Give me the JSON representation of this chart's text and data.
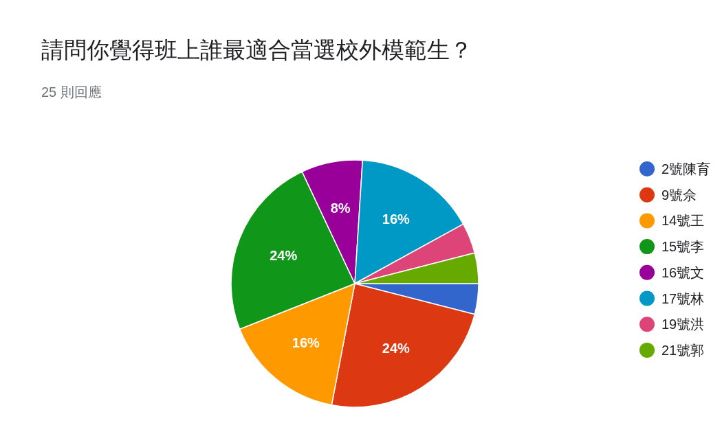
{
  "chart_data": {
    "type": "pie",
    "title": "請問你覺得班上誰最適合當選校外模範生？",
    "subtitle": "25 則回應",
    "categories": [
      "2號陳育",
      "9號佘",
      "14號王",
      "15號李",
      "16號文",
      "17號林",
      "19號洪",
      "21號郭"
    ],
    "values": [
      4,
      24,
      16,
      24,
      8,
      16,
      4,
      4
    ],
    "colors": [
      "#3366cc",
      "#dc3912",
      "#ff9900",
      "#109618",
      "#990099",
      "#0099c6",
      "#dd4477",
      "#66aa00"
    ],
    "value_labels": [
      null,
      "24%",
      "16%",
      "24%",
      "8%",
      "16%",
      null,
      null
    ],
    "legend": "right"
  }
}
